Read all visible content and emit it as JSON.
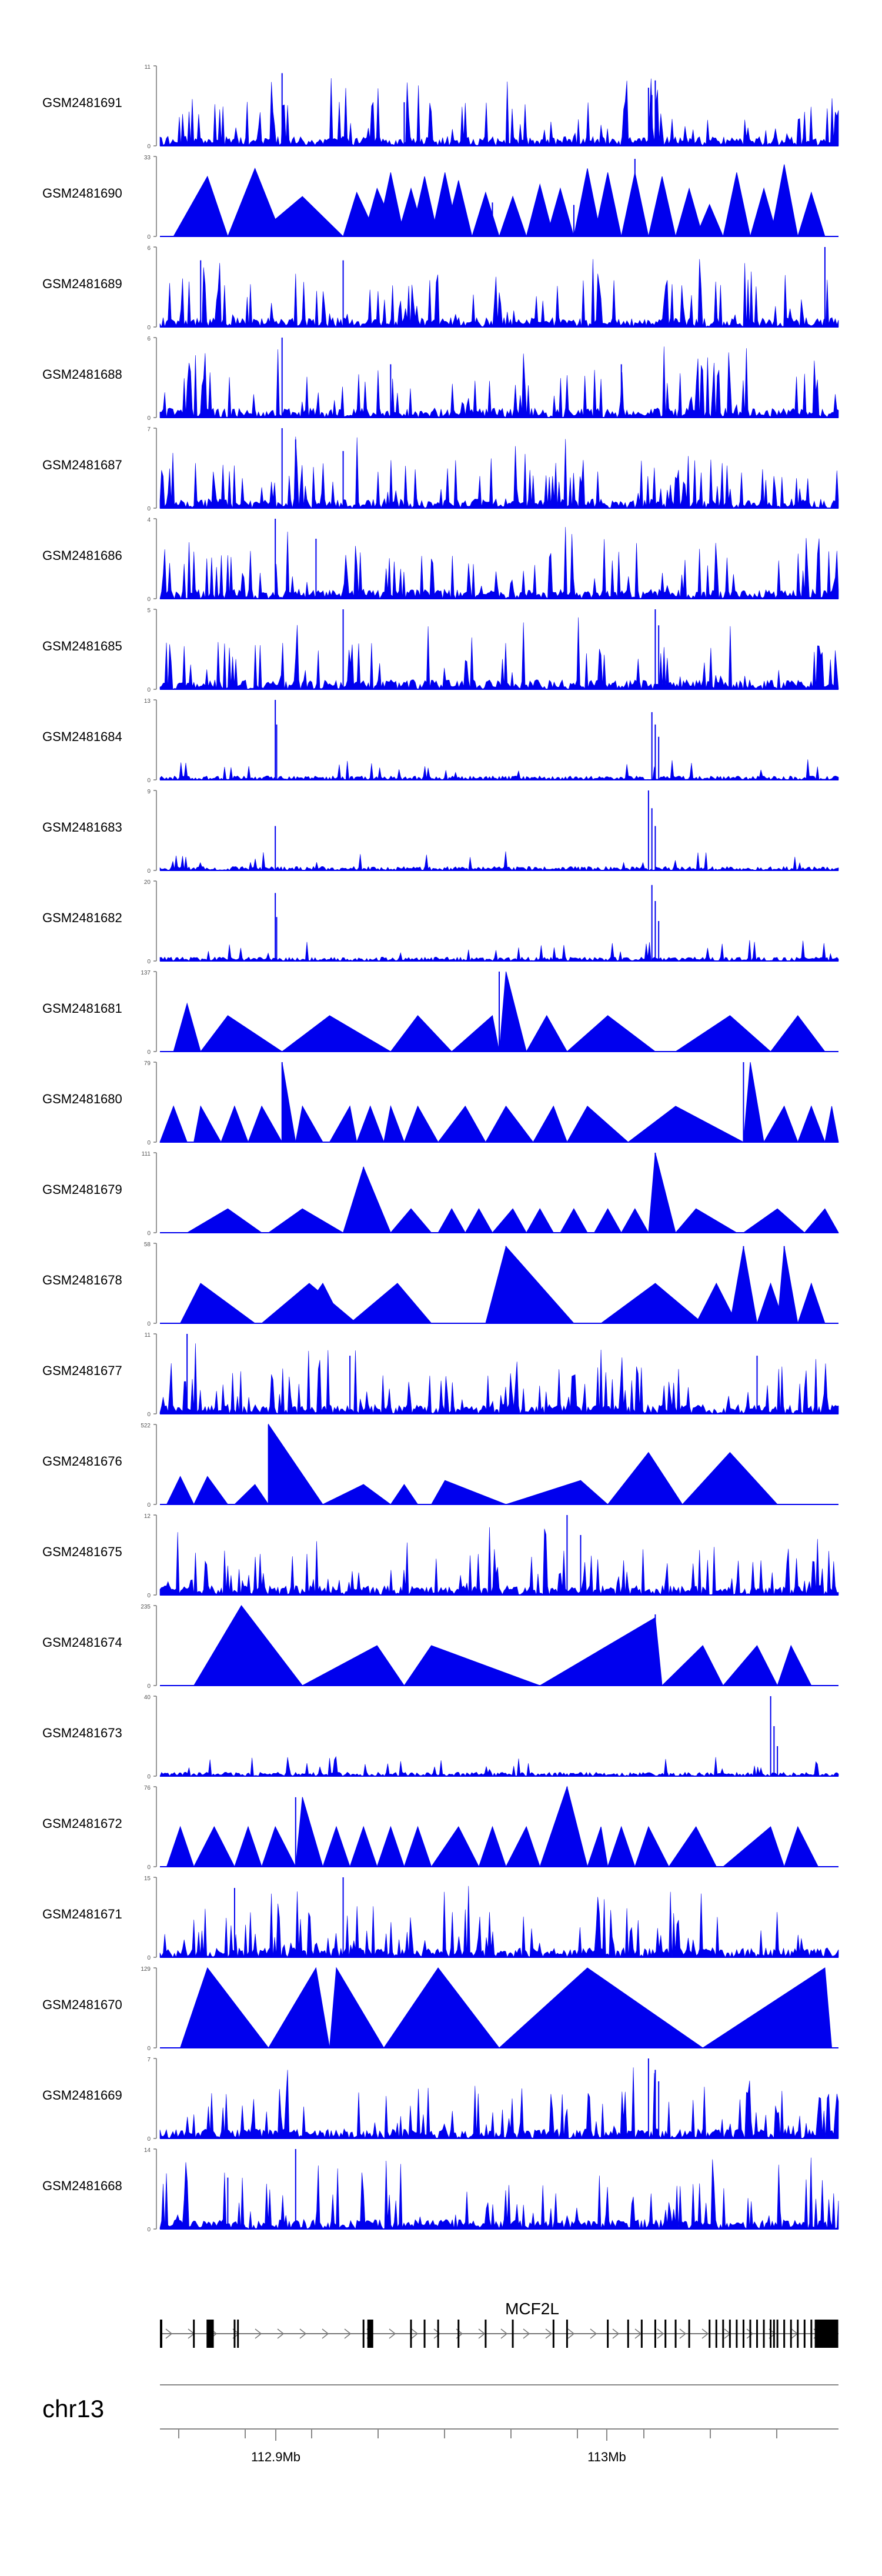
{
  "chart_data": {
    "type": "area",
    "title": "",
    "xlabel": "",
    "chromosome": "chr13",
    "xlim": [
      112.865,
      113.07
    ],
    "x_ticks": [
      112.9,
      113.0
    ],
    "x_tick_labels": [
      "112.9Mb",
      "113Mb"
    ],
    "gene": {
      "name": "MCF2L",
      "strand": "+",
      "start": 112.865,
      "end": 113.07
    },
    "series": [
      {
        "name": "GSM2481691",
        "ymax": 11,
        "style": "dense",
        "seed": 11,
        "peaks": [
          [
            0.18,
            10
          ],
          [
            0.36,
            6
          ],
          [
            0.72,
            8
          ],
          [
            0.725,
            7
          ],
          [
            0.73,
            9
          ]
        ]
      },
      {
        "name": "GSM2481690",
        "ymax": 33,
        "style": "sparse",
        "seed": 12,
        "peaks": [
          [
            0.49,
            14
          ],
          [
            0.61,
            13
          ],
          [
            0.7,
            32
          ],
          [
            0.74,
            14
          ]
        ]
      },
      {
        "name": "GSM2481689",
        "ymax": 6,
        "style": "dense",
        "seed": 13,
        "peaks": [
          [
            0.06,
            5
          ],
          [
            0.27,
            5
          ],
          [
            0.98,
            6
          ]
        ]
      },
      {
        "name": "GSM2481688",
        "ymax": 6,
        "style": "dense",
        "seed": 14,
        "peaks": [
          [
            0.18,
            6
          ],
          [
            0.34,
            4
          ],
          [
            0.68,
            4
          ]
        ]
      },
      {
        "name": "GSM2481687",
        "ymax": 7,
        "style": "dense",
        "seed": 15,
        "peaks": [
          [
            0.18,
            7
          ],
          [
            0.2,
            6
          ],
          [
            0.27,
            5
          ]
        ]
      },
      {
        "name": "GSM2481686",
        "ymax": 4,
        "style": "dense",
        "seed": 16,
        "peaks": [
          [
            0.17,
            4
          ],
          [
            0.23,
            3
          ]
        ]
      },
      {
        "name": "GSM2481685",
        "ymax": 5,
        "style": "dense",
        "seed": 17,
        "peaks": [
          [
            0.27,
            5
          ],
          [
            0.73,
            5
          ],
          [
            0.735,
            4
          ]
        ]
      },
      {
        "name": "GSM2481684",
        "ymax": 13,
        "style": "low",
        "seed": 18,
        "peaks": [
          [
            0.17,
            13
          ],
          [
            0.172,
            9
          ],
          [
            0.725,
            11
          ],
          [
            0.73,
            9
          ],
          [
            0.735,
            7
          ]
        ]
      },
      {
        "name": "GSM2481683",
        "ymax": 9,
        "style": "low",
        "seed": 19,
        "peaks": [
          [
            0.17,
            5
          ],
          [
            0.72,
            9
          ],
          [
            0.725,
            7
          ],
          [
            0.73,
            5
          ]
        ]
      },
      {
        "name": "GSM2481682",
        "ymax": 20,
        "style": "low",
        "seed": 20,
        "peaks": [
          [
            0.17,
            17
          ],
          [
            0.172,
            11
          ],
          [
            0.725,
            19
          ],
          [
            0.73,
            15
          ],
          [
            0.735,
            10
          ]
        ]
      },
      {
        "name": "GSM2481681",
        "ymax": 137,
        "style": "sparse",
        "seed": 21,
        "peaks": [
          [
            0.5,
            137
          ]
        ]
      },
      {
        "name": "GSM2481680",
        "ymax": 79,
        "style": "sparse",
        "seed": 22,
        "peaks": [
          [
            0.18,
            79
          ],
          [
            0.86,
            79
          ]
        ]
      },
      {
        "name": "GSM2481679",
        "ymax": 111,
        "style": "sparse",
        "seed": 23,
        "peaks": [
          [
            0.3,
            91
          ],
          [
            0.73,
            111
          ]
        ]
      },
      {
        "name": "GSM2481678",
        "ymax": 58,
        "style": "sparse",
        "seed": 24,
        "peaks": [
          [
            0.51,
            56
          ],
          [
            0.86,
            56
          ],
          [
            0.92,
            56
          ]
        ]
      },
      {
        "name": "GSM2481677",
        "ymax": 11,
        "style": "dense",
        "seed": 25,
        "peaks": [
          [
            0.04,
            11
          ],
          [
            0.28,
            8
          ],
          [
            0.88,
            8
          ]
        ]
      },
      {
        "name": "GSM2481676",
        "ymax": 522,
        "style": "sparse",
        "seed": 26,
        "peaks": [
          [
            0.16,
            522
          ]
        ]
      },
      {
        "name": "GSM2481675",
        "ymax": 12,
        "style": "dense",
        "seed": 27,
        "peaks": [
          [
            0.6,
            12
          ],
          [
            0.62,
            9
          ]
        ]
      },
      {
        "name": "GSM2481674",
        "ymax": 235,
        "style": "sparse",
        "seed": 28,
        "peaks": [
          [
            0.12,
            235
          ],
          [
            0.73,
            209
          ]
        ]
      },
      {
        "name": "GSM2481673",
        "ymax": 40,
        "style": "low",
        "seed": 29,
        "peaks": [
          [
            0.9,
            40
          ],
          [
            0.905,
            25
          ],
          [
            0.91,
            15
          ]
        ]
      },
      {
        "name": "GSM2481672",
        "ymax": 76,
        "style": "sparse",
        "seed": 30,
        "peaks": [
          [
            0.2,
            66
          ],
          [
            0.6,
            76
          ]
        ]
      },
      {
        "name": "GSM2481671",
        "ymax": 15,
        "style": "dense",
        "seed": 31,
        "peaks": [
          [
            0.27,
            15
          ],
          [
            0.11,
            13
          ]
        ]
      },
      {
        "name": "GSM2481670",
        "ymax": 129,
        "style": "sparse",
        "seed": 32,
        "peaks": []
      },
      {
        "name": "GSM2481669",
        "ymax": 7,
        "style": "dense",
        "seed": 33,
        "peaks": [
          [
            0.72,
            7
          ],
          [
            0.73,
            6
          ],
          [
            0.735,
            5
          ]
        ]
      },
      {
        "name": "GSM2481668",
        "ymax": 14,
        "style": "dense",
        "seed": 34,
        "peaks": [
          [
            0.2,
            14
          ],
          [
            0.1,
            9
          ]
        ]
      }
    ]
  },
  "sparse_shapes": {
    "GSM2481690": [
      [
        0.02,
        0.07,
        0.1,
        0.75
      ],
      [
        0.1,
        0.14,
        0.18,
        0.85
      ],
      [
        0.14,
        0.21,
        0.27,
        0.5
      ],
      [
        0.27,
        0.29,
        0.32,
        0.55
      ],
      [
        0.3,
        0.32,
        0.35,
        0.6
      ],
      [
        0.32,
        0.34,
        0.36,
        0.8
      ],
      [
        0.35,
        0.37,
        0.39,
        0.6
      ],
      [
        0.37,
        0.39,
        0.41,
        0.75
      ],
      [
        0.4,
        0.42,
        0.44,
        0.8
      ],
      [
        0.42,
        0.44,
        0.46,
        0.7
      ],
      [
        0.46,
        0.48,
        0.5,
        0.55
      ],
      [
        0.5,
        0.52,
        0.54,
        0.5
      ],
      [
        0.54,
        0.56,
        0.58,
        0.65
      ],
      [
        0.57,
        0.59,
        0.61,
        0.6
      ],
      [
        0.61,
        0.63,
        0.65,
        0.85
      ],
      [
        0.64,
        0.66,
        0.68,
        0.8
      ],
      [
        0.68,
        0.7,
        0.72,
        0.8
      ],
      [
        0.72,
        0.74,
        0.76,
        0.75
      ],
      [
        0.76,
        0.78,
        0.8,
        0.6
      ],
      [
        0.79,
        0.81,
        0.83,
        0.4
      ],
      [
        0.83,
        0.85,
        0.87,
        0.8
      ],
      [
        0.87,
        0.89,
        0.91,
        0.6
      ],
      [
        0.9,
        0.92,
        0.94,
        0.9
      ],
      [
        0.94,
        0.96,
        0.98,
        0.55
      ]
    ],
    "GSM2481681": [
      [
        0.02,
        0.04,
        0.06,
        0.6
      ],
      [
        0.06,
        0.1,
        0.18,
        0.45
      ],
      [
        0.18,
        0.25,
        0.34,
        0.45
      ],
      [
        0.34,
        0.38,
        0.43,
        0.45
      ],
      [
        0.43,
        0.49,
        0.5,
        0.45
      ],
      [
        0.5,
        0.51,
        0.54,
        1.0
      ],
      [
        0.54,
        0.57,
        0.6,
        0.45
      ],
      [
        0.6,
        0.66,
        0.73,
        0.45
      ],
      [
        0.76,
        0.84,
        0.9,
        0.45
      ],
      [
        0.9,
        0.94,
        0.98,
        0.45
      ]
    ],
    "GSM2481680": [
      [
        0.0,
        0.02,
        0.04,
        0.45
      ],
      [
        0.05,
        0.06,
        0.09,
        0.45
      ],
      [
        0.09,
        0.11,
        0.13,
        0.45
      ],
      [
        0.13,
        0.15,
        0.18,
        0.45
      ],
      [
        0.18,
        0.18,
        0.2,
        1.0
      ],
      [
        0.2,
        0.21,
        0.24,
        0.45
      ],
      [
        0.25,
        0.28,
        0.29,
        0.45
      ],
      [
        0.29,
        0.31,
        0.33,
        0.45
      ],
      [
        0.33,
        0.34,
        0.36,
        0.45
      ],
      [
        0.36,
        0.38,
        0.41,
        0.45
      ],
      [
        0.41,
        0.45,
        0.48,
        0.45
      ],
      [
        0.48,
        0.51,
        0.55,
        0.45
      ],
      [
        0.55,
        0.58,
        0.6,
        0.45
      ],
      [
        0.6,
        0.63,
        0.69,
        0.45
      ],
      [
        0.69,
        0.76,
        0.86,
        0.45
      ],
      [
        0.86,
        0.87,
        0.89,
        1.0
      ],
      [
        0.89,
        0.92,
        0.94,
        0.45
      ],
      [
        0.94,
        0.96,
        0.98,
        0.45
      ],
      [
        0.98,
        0.99,
        1.0,
        0.45
      ]
    ],
    "GSM2481679": [
      [
        0.04,
        0.1,
        0.15,
        0.3
      ],
      [
        0.16,
        0.21,
        0.27,
        0.3
      ],
      [
        0.27,
        0.3,
        0.34,
        0.82
      ],
      [
        0.34,
        0.37,
        0.4,
        0.3
      ],
      [
        0.41,
        0.43,
        0.45,
        0.3
      ],
      [
        0.45,
        0.47,
        0.49,
        0.3
      ],
      [
        0.49,
        0.52,
        0.54,
        0.3
      ],
      [
        0.54,
        0.56,
        0.58,
        0.3
      ],
      [
        0.59,
        0.61,
        0.63,
        0.3
      ],
      [
        0.64,
        0.66,
        0.68,
        0.3
      ],
      [
        0.68,
        0.7,
        0.72,
        0.3
      ],
      [
        0.72,
        0.73,
        0.76,
        1.0
      ],
      [
        0.76,
        0.79,
        0.85,
        0.3
      ],
      [
        0.86,
        0.91,
        0.95,
        0.3
      ],
      [
        0.95,
        0.98,
        1.0,
        0.3
      ]
    ],
    "GSM2481678": [
      [
        0.03,
        0.06,
        0.14,
        0.5
      ],
      [
        0.15,
        0.22,
        0.29,
        0.5
      ],
      [
        0.2,
        0.24,
        0.27,
        0.5
      ],
      [
        0.28,
        0.35,
        0.4,
        0.5
      ],
      [
        0.48,
        0.51,
        0.61,
        0.96
      ],
      [
        0.65,
        0.73,
        0.8,
        0.5
      ],
      [
        0.79,
        0.82,
        0.85,
        0.5
      ],
      [
        0.84,
        0.86,
        0.88,
        0.96
      ],
      [
        0.88,
        0.9,
        0.92,
        0.5
      ],
      [
        0.91,
        0.92,
        0.94,
        0.96
      ],
      [
        0.94,
        0.96,
        0.98,
        0.5
      ]
    ],
    "GSM2481676": [
      [
        0.01,
        0.03,
        0.05,
        0.35
      ],
      [
        0.05,
        0.07,
        0.1,
        0.35
      ],
      [
        0.11,
        0.14,
        0.16,
        0.25
      ],
      [
        0.16,
        0.16,
        0.24,
        1.0
      ],
      [
        0.24,
        0.3,
        0.34,
        0.25
      ],
      [
        0.34,
        0.36,
        0.38,
        0.25
      ],
      [
        0.4,
        0.42,
        0.51,
        0.3
      ],
      [
        0.51,
        0.62,
        0.66,
        0.3
      ],
      [
        0.66,
        0.72,
        0.77,
        0.65
      ],
      [
        0.77,
        0.84,
        0.91,
        0.65
      ]
    ],
    "GSM2481674": [
      [
        0.05,
        0.12,
        0.21,
        1.0
      ],
      [
        0.21,
        0.32,
        0.36,
        0.5
      ],
      [
        0.36,
        0.4,
        0.56,
        0.5
      ],
      [
        0.56,
        0.73,
        0.74,
        0.85
      ],
      [
        0.74,
        0.8,
        0.83,
        0.5
      ],
      [
        0.83,
        0.88,
        0.91,
        0.5
      ],
      [
        0.91,
        0.93,
        0.96,
        0.5
      ]
    ],
    "GSM2481672": [
      [
        0.01,
        0.03,
        0.05,
        0.5
      ],
      [
        0.05,
        0.08,
        0.11,
        0.5
      ],
      [
        0.11,
        0.13,
        0.15,
        0.5
      ],
      [
        0.15,
        0.17,
        0.2,
        0.5
      ],
      [
        0.2,
        0.21,
        0.24,
        0.87
      ],
      [
        0.24,
        0.26,
        0.28,
        0.5
      ],
      [
        0.28,
        0.3,
        0.32,
        0.5
      ],
      [
        0.32,
        0.34,
        0.36,
        0.5
      ],
      [
        0.36,
        0.38,
        0.4,
        0.5
      ],
      [
        0.4,
        0.44,
        0.47,
        0.5
      ],
      [
        0.47,
        0.49,
        0.51,
        0.5
      ],
      [
        0.51,
        0.54,
        0.56,
        0.5
      ],
      [
        0.56,
        0.6,
        0.63,
        1.0
      ],
      [
        0.63,
        0.65,
        0.66,
        0.5
      ],
      [
        0.66,
        0.68,
        0.7,
        0.5
      ],
      [
        0.7,
        0.72,
        0.75,
        0.5
      ],
      [
        0.75,
        0.79,
        0.82,
        0.5
      ],
      [
        0.83,
        0.9,
        0.92,
        0.5
      ],
      [
        0.92,
        0.94,
        0.97,
        0.5
      ]
    ],
    "GSM2481670": [
      [
        0.03,
        0.07,
        0.16,
        1.0
      ],
      [
        0.16,
        0.23,
        0.25,
        1.0
      ],
      [
        0.25,
        0.26,
        0.33,
        1.0
      ],
      [
        0.33,
        0.41,
        0.5,
        1.0
      ],
      [
        0.5,
        0.63,
        0.8,
        1.0
      ],
      [
        0.8,
        0.98,
        0.99,
        1.0
      ]
    ]
  },
  "gene_exons": [
    0.05,
    0.07,
    0.075,
    0.11,
    0.115,
    0.3,
    0.31,
    0.37,
    0.39,
    0.41,
    0.44,
    0.48,
    0.52,
    0.58,
    0.6,
    0.66,
    0.69,
    0.71,
    0.73,
    0.745,
    0.76,
    0.78,
    0.81,
    0.82,
    0.83,
    0.84,
    0.85,
    0.86,
    0.87,
    0.88,
    0.89,
    0.9,
    0.905,
    0.91,
    0.92,
    0.93,
    0.94,
    0.95,
    0.96
  ]
}
